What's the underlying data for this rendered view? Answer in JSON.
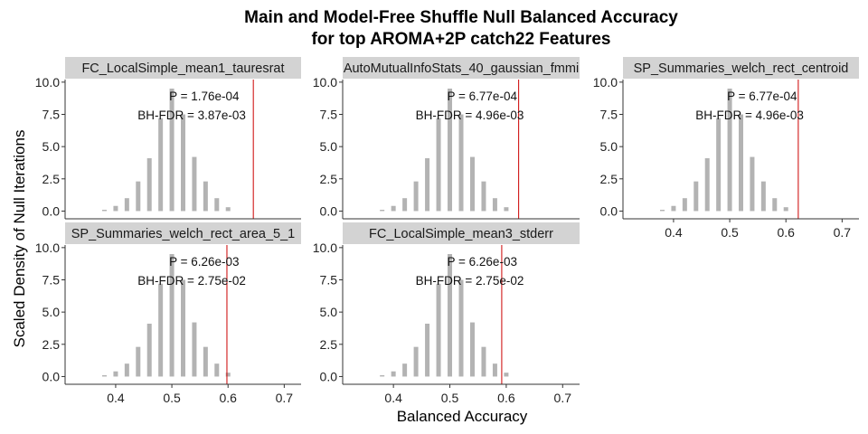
{
  "title_lines": [
    "Main and Model-Free Shuffle Null Balanced Accuracy",
    "for top AROMA+2P catch22 Features"
  ],
  "xlabel": "Balanced Accuracy",
  "ylabel": "Scaled Density of Null Iterations",
  "colors": {
    "bar": "#b3b3b3",
    "strip": "#d3d3d3",
    "vline": "#cc0000",
    "axis": "#333333"
  },
  "chart_data": [
    {
      "type": "bar",
      "panel": "FC_LocalSimple_mean1_tauresrat",
      "x": [
        0.38,
        0.4,
        0.42,
        0.44,
        0.46,
        0.48,
        0.5,
        0.52,
        0.54,
        0.56,
        0.58,
        0.6
      ],
      "values": [
        0.1,
        0.4,
        1.0,
        2.3,
        4.1,
        7.2,
        9.5,
        7.5,
        4.2,
        2.3,
        1.0,
        0.3
      ],
      "observed": 0.645,
      "p_label": "P = 1.76e-04",
      "fdr_label": "BH-FDR = 3.87e-03",
      "xlim": [
        0.31,
        0.73
      ],
      "ylim": [
        -0.6,
        10.2
      ],
      "yticks": [
        "0.0",
        "2.5",
        "5.0",
        "7.5",
        "10.0"
      ],
      "xticks": [],
      "xtick_labels": []
    },
    {
      "type": "bar",
      "panel": "AutoMutualInfoStats_40_gaussian_fmmi",
      "x": [
        0.38,
        0.4,
        0.42,
        0.44,
        0.46,
        0.48,
        0.5,
        0.52,
        0.54,
        0.56,
        0.58,
        0.6
      ],
      "values": [
        0.1,
        0.4,
        1.0,
        2.3,
        4.1,
        7.2,
        9.5,
        7.5,
        4.2,
        2.3,
        1.0,
        0.3
      ],
      "observed": 0.622,
      "p_label": "P = 6.77e-04",
      "fdr_label": "BH-FDR = 4.96e-03",
      "xlim": [
        0.31,
        0.73
      ],
      "ylim": [
        -0.6,
        10.2
      ],
      "yticks": [
        "0.0",
        "2.5",
        "5.0",
        "7.5",
        "10.0"
      ],
      "xticks": [],
      "xtick_labels": []
    },
    {
      "type": "bar",
      "panel": "SP_Summaries_welch_rect_centroid",
      "x": [
        0.38,
        0.4,
        0.42,
        0.44,
        0.46,
        0.48,
        0.5,
        0.52,
        0.54,
        0.56,
        0.58,
        0.6
      ],
      "values": [
        0.1,
        0.4,
        1.0,
        2.3,
        4.1,
        7.2,
        9.5,
        7.5,
        4.2,
        2.3,
        1.0,
        0.3
      ],
      "observed": 0.622,
      "p_label": "P = 6.77e-04",
      "fdr_label": "BH-FDR = 4.96e-03",
      "xlim": [
        0.31,
        0.73
      ],
      "ylim": [
        -0.6,
        10.2
      ],
      "yticks": [
        "0.0",
        "2.5",
        "5.0",
        "7.5",
        "10.0"
      ],
      "xticks": [
        0.4,
        0.5,
        0.6,
        0.7
      ],
      "xtick_labels": [
        "0.4",
        "0.5",
        "0.6",
        "0.7"
      ]
    },
    {
      "type": "bar",
      "panel": "SP_Summaries_welch_rect_area_5_1",
      "x": [
        0.38,
        0.4,
        0.42,
        0.44,
        0.46,
        0.48,
        0.5,
        0.52,
        0.54,
        0.56,
        0.58,
        0.6
      ],
      "values": [
        0.1,
        0.4,
        1.0,
        2.3,
        4.1,
        7.2,
        9.5,
        7.5,
        4.2,
        2.3,
        1.0,
        0.3
      ],
      "observed": 0.598,
      "p_label": "P = 6.26e-03",
      "fdr_label": "BH-FDR = 2.75e-02",
      "xlim": [
        0.31,
        0.73
      ],
      "ylim": [
        -0.6,
        10.2
      ],
      "yticks": [
        "0.0",
        "2.5",
        "5.0",
        "7.5",
        "10.0"
      ],
      "xticks": [
        0.4,
        0.5,
        0.6,
        0.7
      ],
      "xtick_labels": [
        "0.4",
        "0.5",
        "0.6",
        "0.7"
      ]
    },
    {
      "type": "bar",
      "panel": "FC_LocalSimple_mean3_stderr",
      "x": [
        0.38,
        0.4,
        0.42,
        0.44,
        0.46,
        0.48,
        0.5,
        0.52,
        0.54,
        0.56,
        0.58,
        0.6
      ],
      "values": [
        0.1,
        0.4,
        1.0,
        2.3,
        4.1,
        7.2,
        9.5,
        7.5,
        4.2,
        2.3,
        1.0,
        0.3
      ],
      "observed": 0.592,
      "p_label": "P = 6.26e-03",
      "fdr_label": "BH-FDR = 2.75e-02",
      "xlim": [
        0.31,
        0.73
      ],
      "ylim": [
        -0.6,
        10.2
      ],
      "yticks": [
        "0.0",
        "2.5",
        "5.0",
        "7.5",
        "10.0"
      ],
      "xticks": [
        0.4,
        0.5,
        0.6,
        0.7
      ],
      "xtick_labels": [
        "0.4",
        "0.5",
        "0.6",
        "0.7"
      ]
    }
  ]
}
